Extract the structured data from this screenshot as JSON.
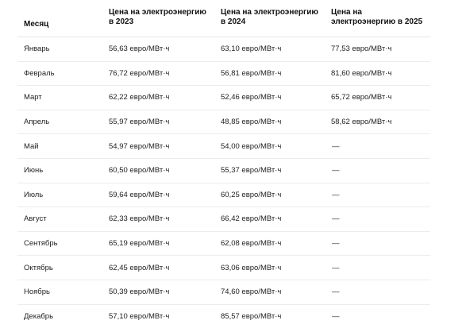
{
  "table": {
    "headers": [
      "Месяц",
      "Цена на электроэнергию в 2023",
      "Цена на электроэнергию в 2024",
      "Цена на электроэнергию в 2025"
    ],
    "rows": [
      [
        "Январь",
        "56,63 евро/МВт·ч",
        "63,10 евро/МВт·ч",
        "77,53 евро/МВт·ч"
      ],
      [
        "Февраль",
        "76,72 евро/МВт·ч",
        "56,81 евро/МВт·ч",
        "81,60 евро/МВт·ч"
      ],
      [
        "Март",
        "62,22 евро/МВт·ч",
        "52,46 евро/МВт·ч",
        "65,72 евро/МВт·ч"
      ],
      [
        "Апрель",
        "55,97 евро/МВт·ч",
        "48,85 евро/МВт·ч",
        "58,62 евро/МВт·ч"
      ],
      [
        "Май",
        "54,97 евро/МВт·ч",
        "54,00 евро/МВт·ч",
        "—"
      ],
      [
        "Июнь",
        "60,50 евро/МВт·ч",
        "55,37 евро/МВт·ч",
        "—"
      ],
      [
        "Июль",
        "59,64 евро/МВт·ч",
        "60,25 евро/МВт·ч",
        "—"
      ],
      [
        "Август",
        "62,33 евро/МВт·ч",
        "66,42 евро/МВт·ч",
        "—"
      ],
      [
        "Сентябрь",
        "65,19 евро/МВт·ч",
        "62,08 евро/МВт·ч",
        "—"
      ],
      [
        "Октябрь",
        "62,45 евро/МВт·ч",
        "63,06 евро/МВт·ч",
        "—"
      ],
      [
        "Ноябрь",
        "50,39 евро/МВт·ч",
        "74,60 евро/МВт·ч",
        "—"
      ],
      [
        "Декабрь",
        "57,10 евро/МВт·ч",
        "85,57 евро/МВт·ч",
        "—"
      ]
    ]
  }
}
